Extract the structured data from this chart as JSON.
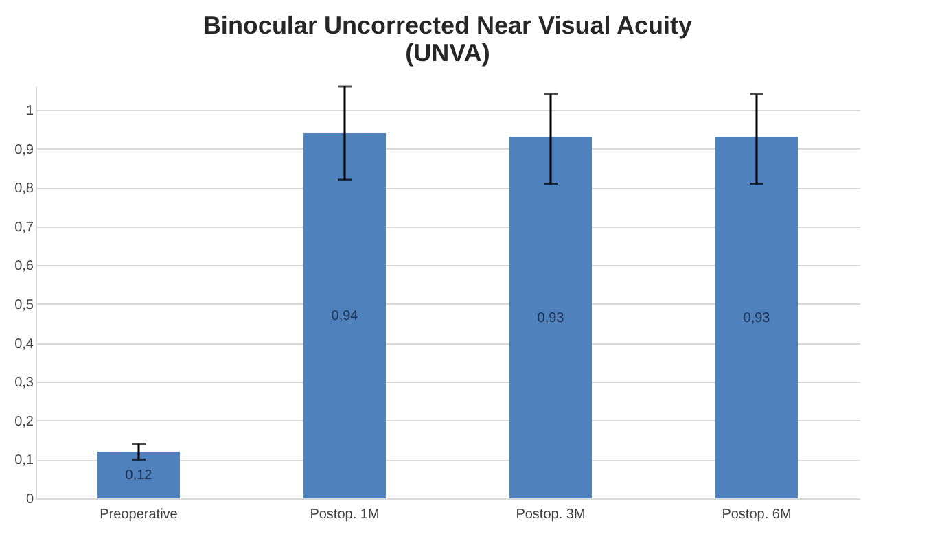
{
  "chart_data": {
    "type": "bar",
    "title": "Binocular Uncorrected Near Visual Acuity\n(UNVA)",
    "categories": [
      "Preoperative",
      "Postop. 1M",
      "Postop. 3M",
      "Postop. 6M"
    ],
    "values": [
      0.12,
      0.94,
      0.93,
      0.93
    ],
    "errors": [
      [
        0.1,
        0.14
      ],
      [
        0.82,
        1.06
      ],
      [
        0.81,
        1.04
      ],
      [
        0.81,
        1.04
      ]
    ],
    "value_labels": [
      "0,12",
      "0,94",
      "0,93",
      "0,93"
    ],
    "color": "#4f81bd",
    "ylim": [
      0,
      1.06
    ],
    "yticks": [
      0,
      {
        "value": 0.1,
        "label": "0,1"
      },
      {
        "value": 0.2,
        "label": "0,2"
      },
      {
        "value": 0.3,
        "label": "0,3"
      },
      {
        "value": 0.4,
        "label": "0,4"
      },
      {
        "value": 0.5,
        "label": "0,5"
      },
      {
        "value": 0.6,
        "label": "0,6"
      },
      {
        "value": 0.7,
        "label": "0,7"
      },
      {
        "value": 0.8,
        "label": "0,8"
      },
      {
        "value": 0.9,
        "label": "0,9"
      },
      1
    ],
    "grid": "y"
  }
}
